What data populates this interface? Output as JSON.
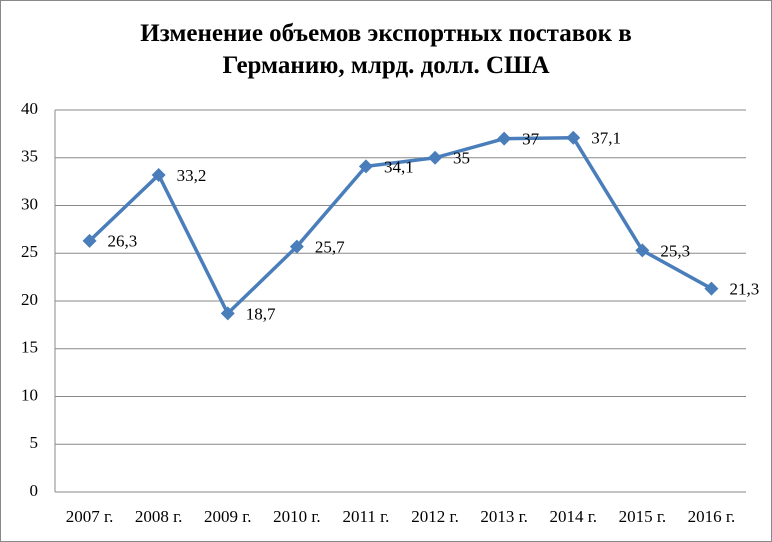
{
  "chart_data": {
    "type": "line",
    "title": "Изменение объемов экспортных поставок в Германию, млрд. долл. США",
    "categories": [
      "2007 г.",
      "2008 г.",
      "2009 г.",
      "2010 г.",
      "2011 г.",
      "2012 г.",
      "2013 г.",
      "2014 г.",
      "2015 г.",
      "2016 г."
    ],
    "values": [
      26.3,
      33.2,
      18.7,
      25.7,
      34.1,
      35,
      37,
      37.1,
      25.3,
      21.3
    ],
    "value_labels": [
      "26,3",
      "33,2",
      "18,7",
      "25,7",
      "34,1",
      "35",
      "37",
      "37,1",
      "25,3",
      "21,3"
    ],
    "color": "#4a7ebb",
    "ylim": [
      0,
      40
    ],
    "yticks": [
      0,
      5,
      10,
      15,
      20,
      25,
      30,
      35,
      40
    ],
    "grid": true
  }
}
